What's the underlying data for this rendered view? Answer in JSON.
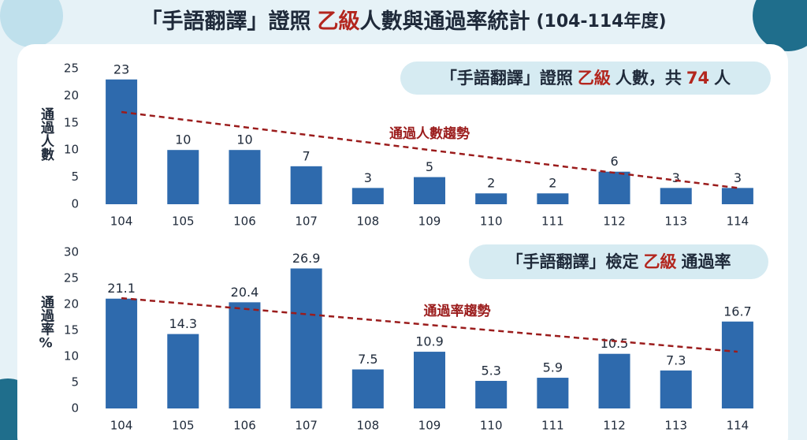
{
  "title_parts": [
    "「手語翻譯」證照",
    "乙級",
    "人數與通過率統計",
    "(104-114年度)"
  ],
  "chart_data": [
    {
      "type": "bar",
      "banner_parts": [
        "「手語翻譯」證照",
        "乙級",
        "人數，共",
        "74",
        "人"
      ],
      "ylabel": "通過人數",
      "color": "#2e6aad",
      "categories": [
        "104",
        "105",
        "106",
        "107",
        "108",
        "109",
        "110",
        "111",
        "112",
        "113",
        "114"
      ],
      "values": [
        23,
        10,
        10,
        7,
        3,
        5,
        2,
        2,
        6,
        3,
        3
      ],
      "ylim": [
        0,
        25
      ],
      "yticks": [
        0,
        5,
        10,
        15,
        20,
        25
      ],
      "trend": {
        "label": "通過人數趨勢",
        "start": 17,
        "end": 3,
        "color": "#9b1c1c"
      }
    },
    {
      "type": "bar",
      "banner_parts": [
        "「手語翻譯」檢定",
        "乙級",
        "通過率"
      ],
      "ylabel": "通過率%",
      "color": "#2e6aad",
      "categories": [
        "104",
        "105",
        "106",
        "107",
        "108",
        "109",
        "110",
        "111",
        "112",
        "113",
        "114"
      ],
      "values": [
        21.1,
        14.3,
        20.4,
        26.9,
        7.5,
        10.9,
        5.3,
        5.9,
        10.5,
        7.3,
        16.7
      ],
      "ylim": [
        0,
        30
      ],
      "yticks": [
        0,
        5,
        10,
        15,
        20,
        25,
        30
      ],
      "trend": {
        "label": "通過率趨勢",
        "start": 21.2,
        "end": 10.9,
        "color": "#9b1c1c"
      }
    }
  ]
}
